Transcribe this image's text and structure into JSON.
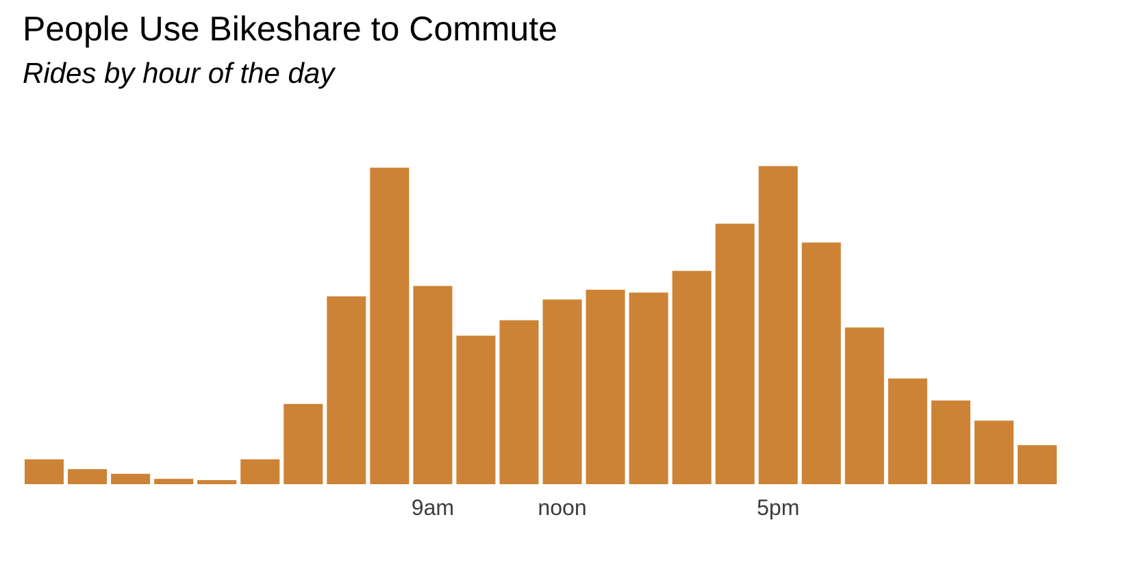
{
  "title": "People Use Bikeshare to Commute",
  "subtitle": "Rides by hour of the day",
  "colors": {
    "bar": "#cd8335",
    "tick_text": "#3d3d3d",
    "background": "#ffffff"
  },
  "chart_data": {
    "type": "bar",
    "title": "People Use Bikeshare to Commute",
    "subtitle": "Rides by hour of the day",
    "xlabel": "",
    "ylabel": "",
    "categories": [
      0,
      1,
      2,
      3,
      4,
      5,
      6,
      7,
      8,
      9,
      10,
      11,
      12,
      13,
      14,
      15,
      16,
      17,
      18,
      19,
      20,
      21,
      22,
      23
    ],
    "values": [
      7.9,
      4.8,
      3.3,
      1.7,
      1.3,
      7.9,
      25.5,
      59.7,
      100.6,
      63.0,
      47.2,
      52.1,
      58.7,
      61.8,
      60.9,
      67.8,
      82.8,
      101.1,
      76.8,
      49.8,
      33.6,
      26.6,
      20.2,
      12.4
    ],
    "ylim": [
      0,
      106
    ],
    "x_tick_labels": [
      {
        "hour": 9,
        "label": "9am"
      },
      {
        "hour": 12,
        "label": "noon"
      },
      {
        "hour": 17,
        "label": "5pm"
      }
    ],
    "grid": false,
    "legend": "none"
  }
}
